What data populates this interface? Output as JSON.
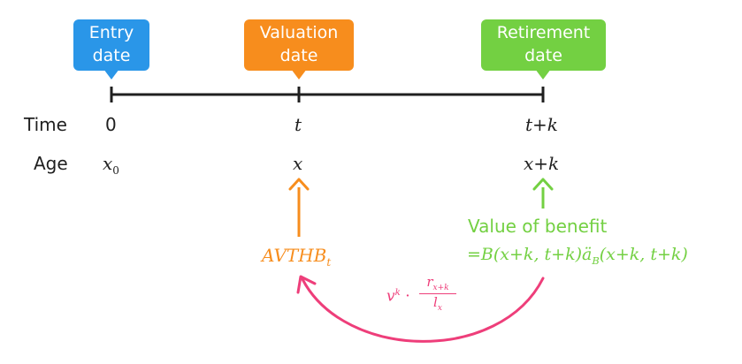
{
  "colors": {
    "entry": "#2a96e8",
    "valuation": "#f78d1d",
    "retirement": "#73d042",
    "discount_arrow": "#ee3e7a",
    "line": "#1f1f1f"
  },
  "callouts": {
    "entry": {
      "line1": "Entry",
      "line2": "date"
    },
    "valuation": {
      "line1": "Valuation",
      "line2": "date"
    },
    "retirement": {
      "line1": "Retirement",
      "line2": "date"
    }
  },
  "rows": {
    "time_label": "Time",
    "age_label": "Age"
  },
  "time": {
    "entry": "0",
    "valuation": "t",
    "retirement": "t+k"
  },
  "age": {
    "entry_base": "x",
    "entry_sub": "0",
    "valuation": "x",
    "retirement": "x+k"
  },
  "avthb": {
    "base": "AVTHB",
    "sub": "t"
  },
  "benefit": {
    "title": "Value of benefit",
    "formula_pre": "=B(x+k, t+k)ä",
    "formula_sub": "B",
    "formula_post": "(x+k, t+k)"
  },
  "discount": {
    "v": "v",
    "v_sup": "k",
    "dot": "·",
    "num_base": "r",
    "num_sub": "x+k",
    "den_base": "l",
    "den_sub": "x"
  }
}
